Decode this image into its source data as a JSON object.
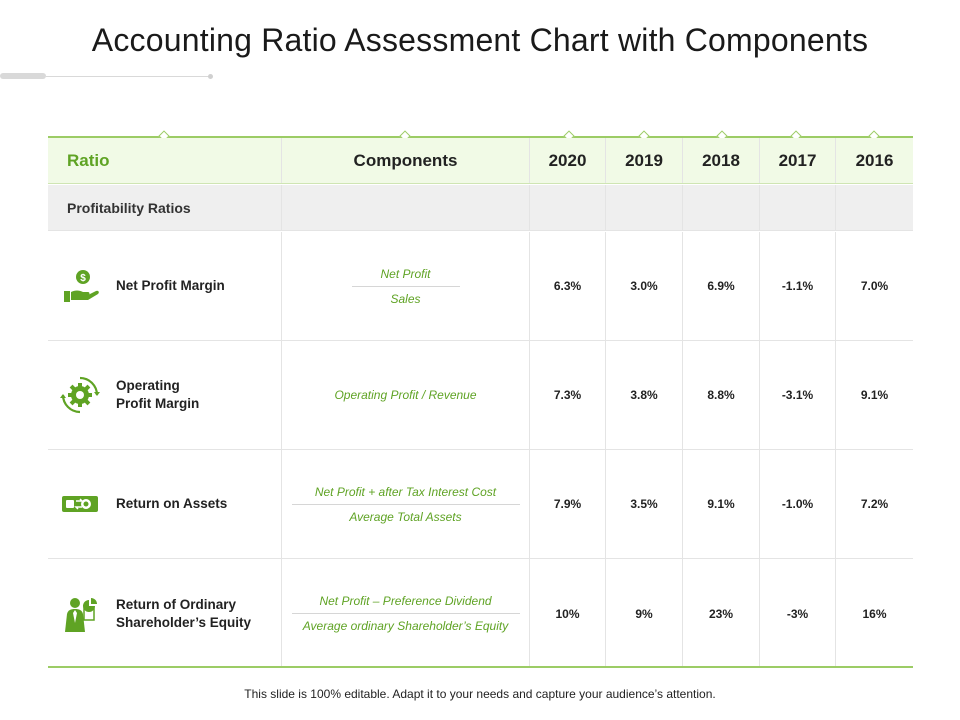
{
  "title": "Accounting Ratio Assessment Chart with Components",
  "accent_color": "#5fa324",
  "header": {
    "ratio": "Ratio",
    "components": "Components",
    "years": [
      "2020",
      "2019",
      "2018",
      "2017",
      "2016"
    ]
  },
  "section": {
    "label": "Profitability Ratios"
  },
  "rows": [
    {
      "name": "Net Profit Margin",
      "icon": "money-hand-icon",
      "numerator": "Net Profit",
      "denominator": "Sales",
      "values": [
        "6.3%",
        "3.0%",
        "6.9%",
        "-1.1%",
        "7.0%"
      ]
    },
    {
      "name": "Operating\nProfit Margin",
      "icon": "gear-cycle-icon",
      "component": "Operating  Profit / Revenue",
      "values": [
        "7.3%",
        "3.8%",
        "8.8%",
        "-3.1%",
        "9.1%"
      ]
    },
    {
      "name": "Return on Assets",
      "icon": "cash-exchange-icon",
      "numerator": "Net Profit + after Tax Interest Cost",
      "denominator": "Average  Total Assets",
      "values": [
        "7.9%",
        "3.5%",
        "9.1%",
        "-1.0%",
        "7.2%"
      ]
    },
    {
      "name": "Return of Ordinary\nShareholder’s Equity",
      "icon": "businessman-chart-icon",
      "numerator": "Net Profit – Preference Dividend",
      "denominator": "Average  ordinary  Shareholder’s  Equity",
      "values": [
        "10%",
        "9%",
        "23%",
        "-3%",
        "16%"
      ]
    }
  ],
  "footer": "This slide is 100% editable. Adapt it to your needs and capture your audience’s attention."
}
